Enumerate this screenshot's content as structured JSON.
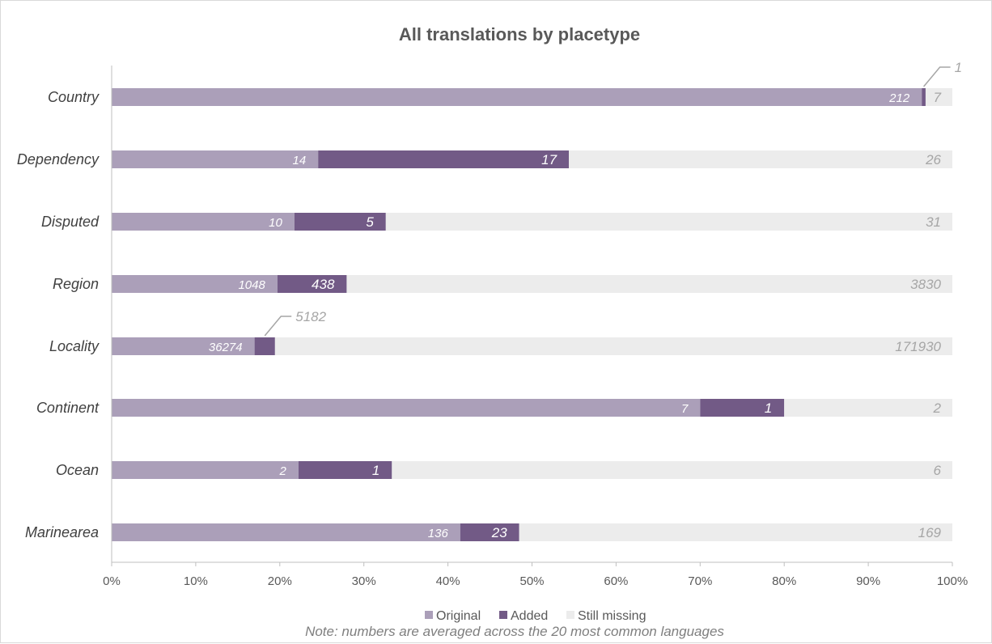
{
  "chart_data": {
    "type": "bar",
    "orientation": "horizontal",
    "stacked": "percent",
    "title": "All translations by placetype",
    "categories": [
      "Country",
      "Dependency",
      "Disputed",
      "Region",
      "Locality",
      "Continent",
      "Ocean",
      "Marinearea"
    ],
    "series": [
      {
        "name": "Original",
        "values": [
          212,
          14,
          10,
          1048,
          36274,
          7,
          2,
          136
        ],
        "color": "#ab9fb9"
      },
      {
        "name": "Added",
        "values": [
          1,
          17,
          5,
          438,
          5182,
          1,
          1,
          23
        ],
        "color": "#725a86"
      },
      {
        "name": "Still missing",
        "values": [
          7,
          26,
          31,
          3830,
          171930,
          2,
          6,
          169
        ],
        "color": "#ececec"
      }
    ],
    "xlim": [
      0,
      100
    ],
    "xticks": [
      "0%",
      "10%",
      "20%",
      "30%",
      "40%",
      "50%",
      "60%",
      "70%",
      "80%",
      "90%",
      "100%"
    ],
    "legend_position": "bottom",
    "grid": false,
    "note": "Note: numbers are averaged across the 20 most common languages"
  }
}
